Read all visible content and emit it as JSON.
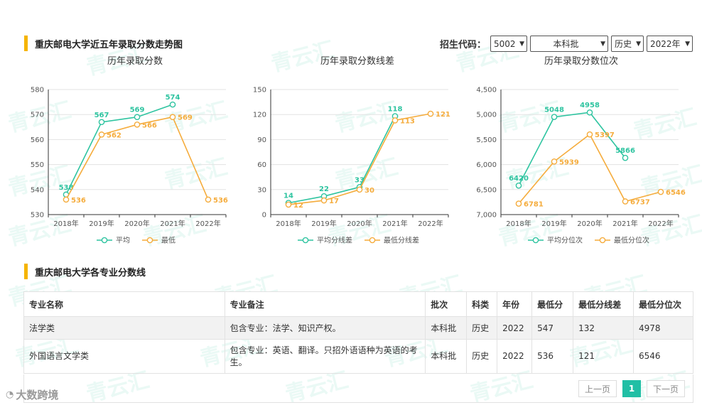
{
  "watermark_text": "青云汇",
  "header": {
    "trend_title": "重庆邮电大学近五年录取分数走势图",
    "filter_label": "招生代码：",
    "filters": [
      "5002",
      "本科批",
      "历史",
      "2022年"
    ]
  },
  "charts": {
    "score": {
      "title": "历年录取分数",
      "legend": [
        "平均",
        "最低"
      ]
    },
    "line_diff": {
      "title": "历年录取分数线差",
      "legend": [
        "平均分线差",
        "最低分线差"
      ]
    },
    "rank": {
      "title": "历年录取分数位次",
      "legend": [
        "平均分位次",
        "最低分位次"
      ]
    }
  },
  "chart_data": [
    {
      "type": "line",
      "title": "历年录取分数",
      "categories": [
        "2018年",
        "2019年",
        "2020年",
        "2021年",
        "2022年"
      ],
      "ylim": [
        530,
        580
      ],
      "yticks": [
        530,
        540,
        550,
        560,
        570,
        580
      ],
      "series": [
        {
          "name": "平均",
          "color": "#2ec4a0",
          "values": [
            538,
            567,
            569,
            574,
            null
          ]
        },
        {
          "name": "最低",
          "color": "#f5ac3c",
          "values": [
            536,
            562,
            566,
            569,
            536
          ]
        }
      ],
      "grid": true,
      "legend": "bottom"
    },
    {
      "type": "line",
      "title": "历年录取分数线差",
      "categories": [
        "2018年",
        "2019年",
        "2020年",
        "2021年",
        "2022年"
      ],
      "ylim": [
        0,
        150
      ],
      "yticks": [
        0,
        30,
        60,
        90,
        120,
        150
      ],
      "series": [
        {
          "name": "平均分线差",
          "color": "#2ec4a0",
          "values": [
            14,
            22,
            33,
            118,
            null
          ]
        },
        {
          "name": "最低分线差",
          "color": "#f5ac3c",
          "values": [
            12,
            17,
            30,
            113,
            121
          ]
        }
      ],
      "grid": true,
      "legend": "bottom"
    },
    {
      "type": "line",
      "title": "历年录取分数位次",
      "categories": [
        "2018年",
        "2019年",
        "2020年",
        "2021年",
        "2022年"
      ],
      "ylim": [
        4500,
        7000
      ],
      "y_inverted": true,
      "yticks": [
        4500,
        5000,
        5500,
        6000,
        6500,
        7000
      ],
      "ytick_labels": [
        "4,500",
        "5,000",
        "5,500",
        "6,000",
        "6,500",
        "7,000"
      ],
      "series": [
        {
          "name": "平均分位次",
          "color": "#2ec4a0",
          "values": [
            6420,
            5048,
            4958,
            5866,
            null
          ]
        },
        {
          "name": "最低分位次",
          "color": "#f5ac3c",
          "values": [
            6781,
            5939,
            5397,
            6737,
            6546
          ]
        }
      ],
      "grid": true,
      "legend": "bottom"
    }
  ],
  "majors": {
    "title": "重庆邮电大学各专业分数线",
    "columns": [
      "专业名称",
      "专业备注",
      "批次",
      "科类",
      "年份",
      "最低分",
      "最低分线差",
      "最低分位次"
    ],
    "rows": [
      [
        "法学类",
        "包含专业：法学、知识产权。",
        "本科批",
        "历史",
        "2022",
        "547",
        "132",
        "4978"
      ],
      [
        "外国语言文学类",
        "包含专业：英语、翻译。只招外语语种为英语的考生。",
        "本科批",
        "历史",
        "2022",
        "536",
        "121",
        "6546"
      ]
    ],
    "pager": {
      "prev": "上一页",
      "current": "1",
      "next": "下一页"
    }
  },
  "footer_logo": "大数跨境",
  "colors": {
    "accent": "#2ec4a0",
    "secondary": "#f5ac3c",
    "section_bar": "#f5b400"
  }
}
